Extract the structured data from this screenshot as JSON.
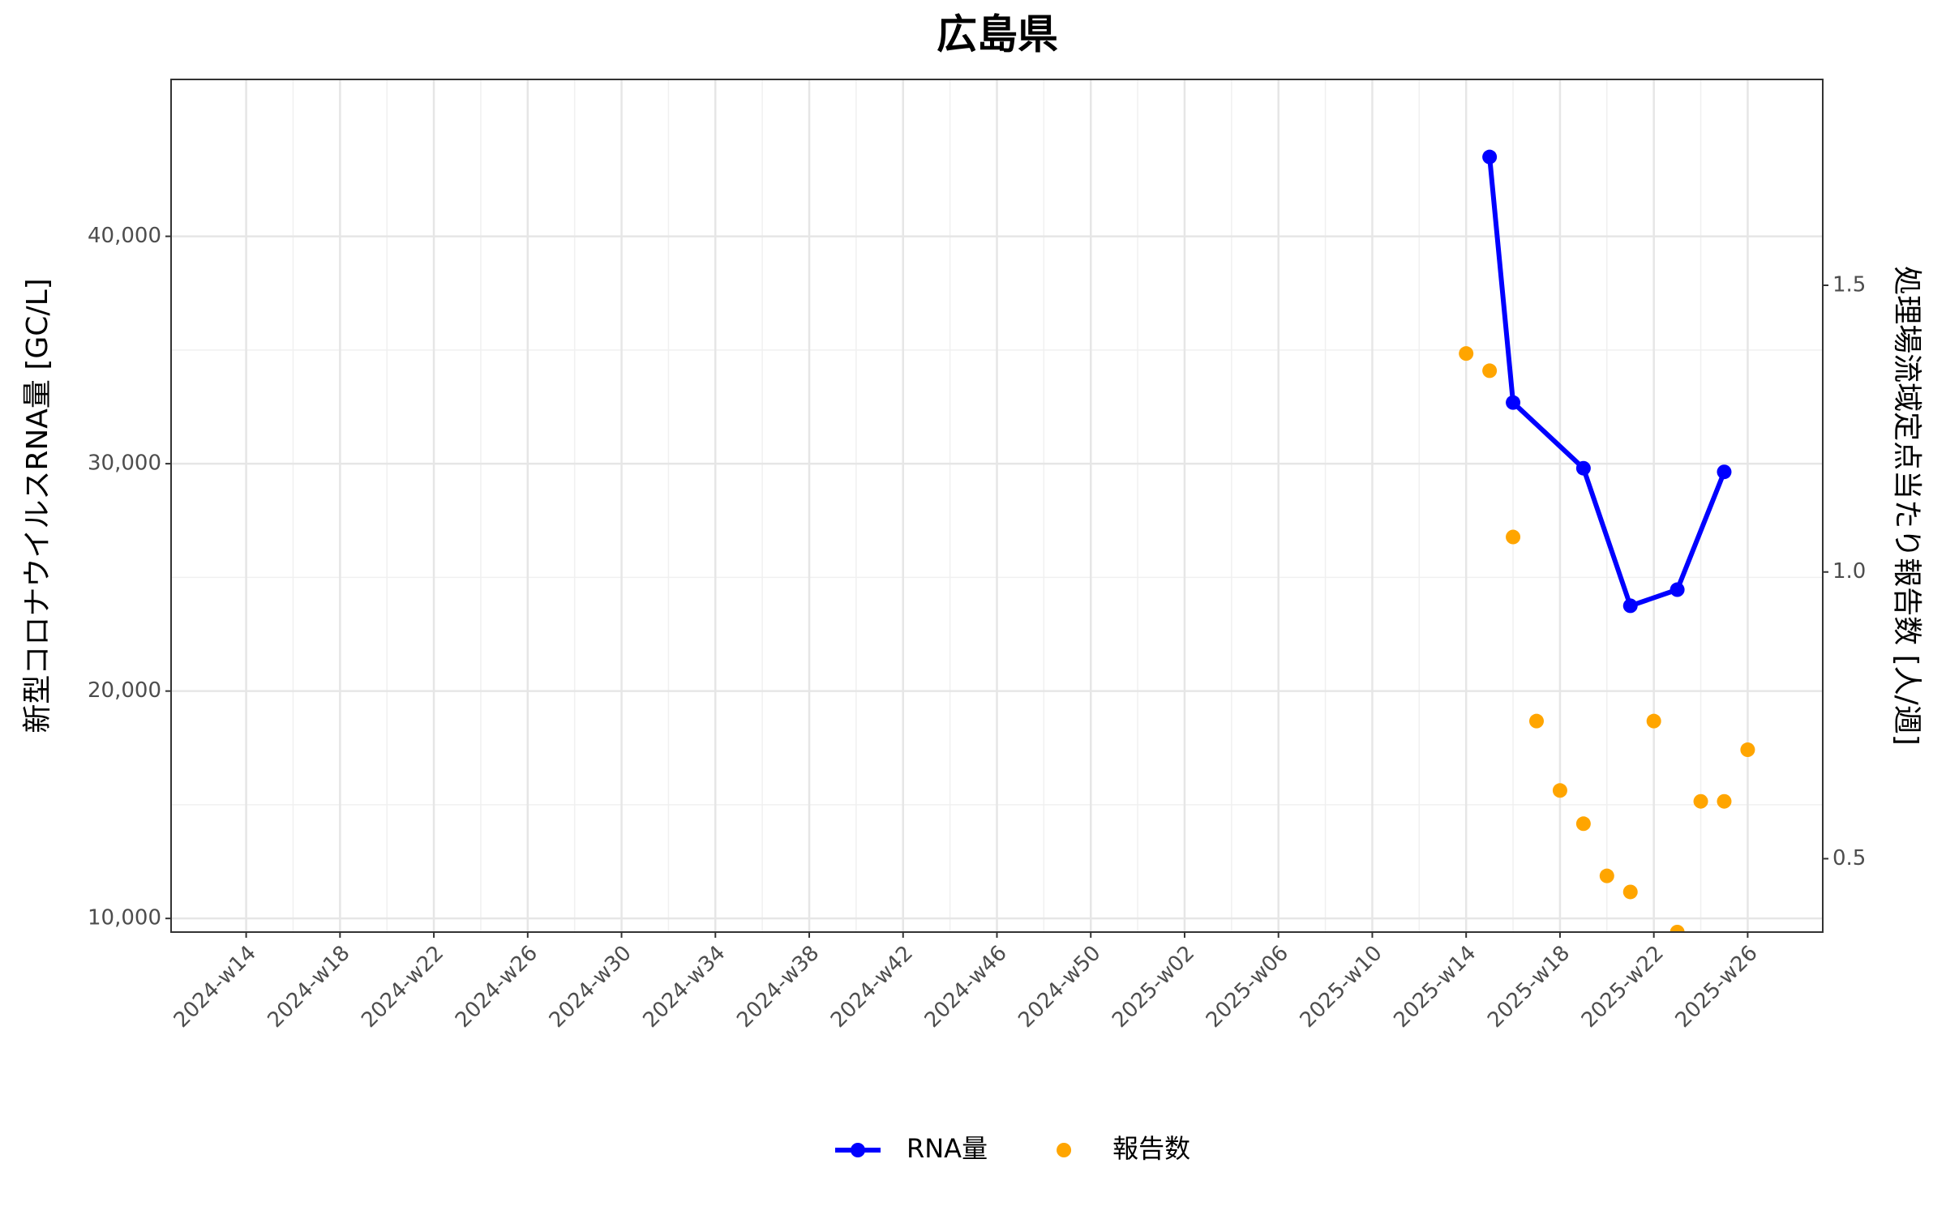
{
  "chart_data": {
    "type": "line",
    "title": "広島県",
    "y_label": "新型コロナウイルスRNA量 [GC/L]",
    "y2_label": "処理場流域定点当たり報告数 [人/週]",
    "xticks": [
      "2024-w14",
      "2024-w18",
      "2024-w22",
      "2024-w26",
      "2024-w30",
      "2024-w34",
      "2024-w38",
      "2024-w42",
      "2024-w46",
      "2024-w50",
      "2025-w02",
      "2025-w06",
      "2025-w10",
      "2025-w14",
      "2025-w18",
      "2025-w22",
      "2025-w26"
    ],
    "ylim": [
      9400,
      46900
    ],
    "yticks": [
      {
        "value": 10000,
        "label": "10,000"
      },
      {
        "value": 20000,
        "label": "20,000"
      },
      {
        "value": 30000,
        "label": "30,000"
      },
      {
        "value": 40000,
        "label": "40,000"
      }
    ],
    "y2lim": [
      0.372,
      1.859
    ],
    "y2ticks": [
      0.5,
      {
        "value": 1,
        "label": "1.0"
      },
      1.5
    ],
    "grid": true,
    "legend": "bottom",
    "series": [
      {
        "name": "RNA量",
        "type": "line",
        "color": "#0000ff",
        "x": [
          "2025-w15",
          "2025-w16",
          "2025-w19",
          "2025-w21",
          "2025-w23",
          "2025-w25"
        ],
        "values": [
          43490,
          32690,
          29800,
          23750,
          24460,
          29640
        ]
      },
      {
        "name": "報告数",
        "type": "scatter",
        "axis": "y2",
        "color": "#ffa500",
        "x": [
          "2025-w14",
          "2025-w15",
          "2025-w16",
          "2025-w17",
          "2025-w18",
          "2025-w19",
          "2025-w20",
          "2025-w21",
          "2025-w22",
          "2025-w23",
          "2025-w24",
          "2025-w25",
          "2025-w26"
        ],
        "values": [
          1.381,
          1.351,
          1.061,
          0.74,
          0.619,
          0.561,
          0.47,
          0.442,
          0.74,
          0.372,
          0.6,
          0.6,
          0.69
        ]
      }
    ]
  }
}
